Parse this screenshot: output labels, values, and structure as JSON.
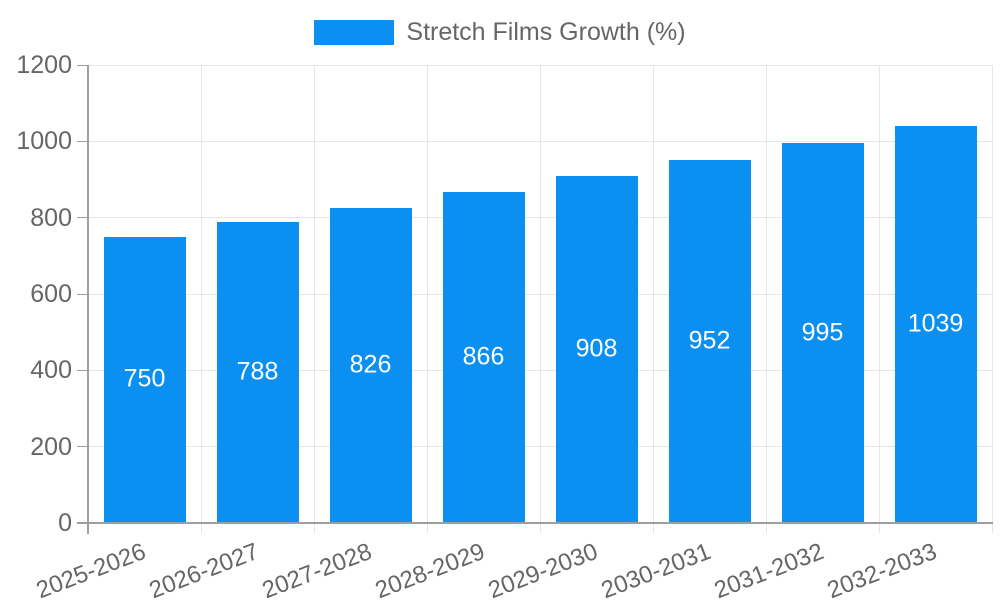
{
  "legend": {
    "items": [
      {
        "label": "Stretch Films Growth (%)",
        "color": "#0B90F1"
      }
    ]
  },
  "chart_data": {
    "type": "bar",
    "title": "Stretch Films Growth (%)",
    "categories": [
      "2025-2026",
      "2026-2027",
      "2027-2028",
      "2028-2029",
      "2029-2030",
      "2030-2031",
      "2031-2032",
      "2032-2033"
    ],
    "series": [
      {
        "name": "Stretch Films Growth (%)",
        "values": [
          750,
          788,
          826,
          866,
          908,
          952,
          995,
          1039
        ]
      }
    ],
    "value_labels": [
      "750",
      "788",
      "826",
      "866",
      "908",
      "952",
      "995",
      "1039"
    ],
    "value_labels_position": "center-inside-bar",
    "xlabel": "",
    "ylabel": "",
    "ylim": [
      0,
      1200
    ],
    "ytick_step": 200,
    "ytick_labels": [
      "0",
      "200",
      "400",
      "600",
      "800",
      "1000",
      "1200"
    ],
    "grid": true,
    "legend_position": "top-center",
    "x_label_rotation_deg": -21,
    "colors": {
      "bar": "#0B90F1",
      "value_label": "#FFFFFF",
      "grid": "#E6E6E6",
      "axis": "#9E9E9E",
      "tick_text": "#666666",
      "legend_text": "#666666",
      "background": "#FFFFFF"
    }
  }
}
